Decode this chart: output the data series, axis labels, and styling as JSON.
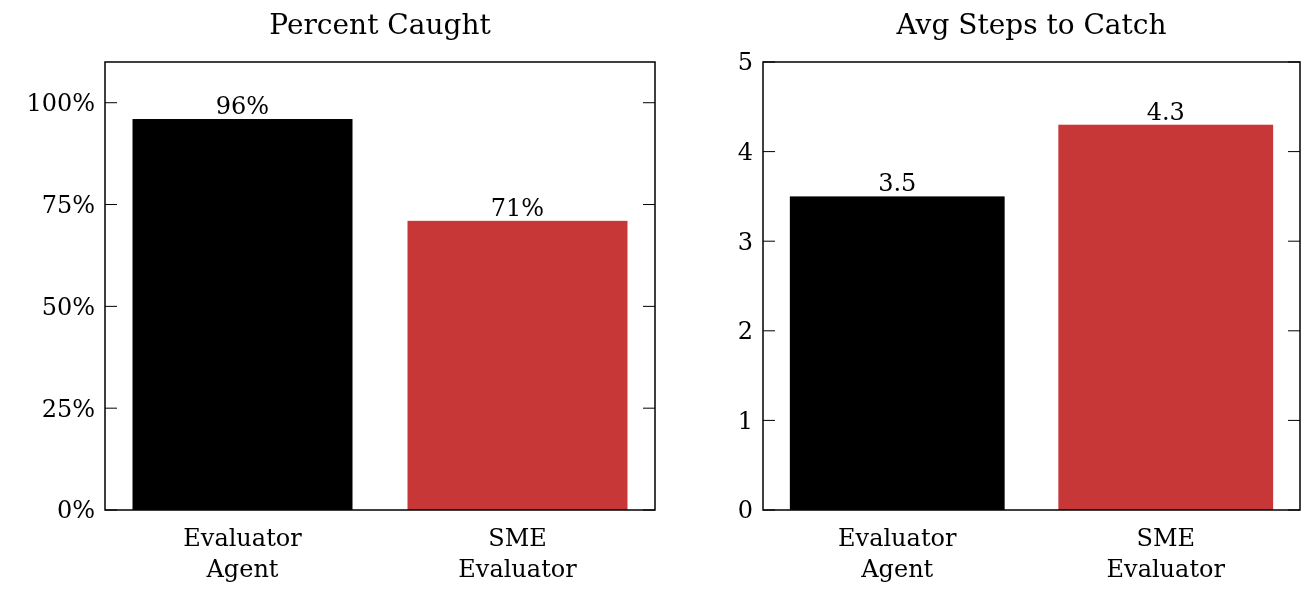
{
  "chart_data": [
    {
      "type": "bar",
      "title": "Percent Caught",
      "categories": [
        "Evaluator Agent",
        "SME Evaluator"
      ],
      "values": [
        96,
        71
      ],
      "colors": [
        "#000000",
        "#c83737"
      ],
      "value_labels": [
        "96%",
        "71%"
      ],
      "ylim": [
        0,
        110
      ],
      "yticks": [
        {
          "value": 0,
          "label": "0%"
        },
        {
          "value": 25,
          "label": "25%"
        },
        {
          "value": 50,
          "label": "50%"
        },
        {
          "value": 75,
          "label": "75%"
        },
        {
          "value": 100,
          "label": "100%"
        }
      ],
      "grid": false
    },
    {
      "type": "bar",
      "title": "Avg Steps to Catch",
      "categories": [
        "Evaluator Agent",
        "SME Evaluator"
      ],
      "values": [
        3.5,
        4.3
      ],
      "colors": [
        "#000000",
        "#c83737"
      ],
      "data_labels": true,
      "ylim": [
        0,
        5
      ],
      "yticks": [
        0,
        1,
        2,
        3,
        4,
        5
      ],
      "grid": false
    }
  ]
}
